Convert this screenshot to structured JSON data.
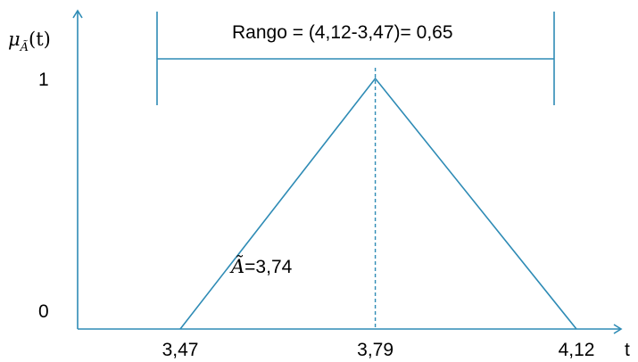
{
  "colors": {
    "line": "#2e8bb5",
    "text": "#000000",
    "background": "#ffffff"
  },
  "axes": {
    "y_label_mu": "μ",
    "y_label_sub": "Ã",
    "y_label_arg": "(t)",
    "x_label": "t",
    "y_tick_top": "1",
    "y_tick_bottom": "0"
  },
  "range_annotation": {
    "text": "Rango = (4,12-3,47)= 0,65"
  },
  "triangle": {
    "left": 3.47,
    "peak": 3.79,
    "right": 4.12
  },
  "ticks": {
    "left": "3,47",
    "peak": "3,79",
    "right": "4,12"
  },
  "centroid": {
    "symbol": "Ã",
    "value_text": "=3,74"
  }
}
